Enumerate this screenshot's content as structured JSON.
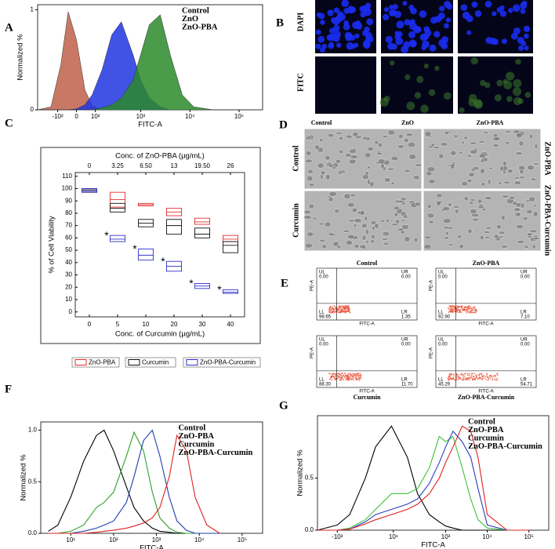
{
  "panel_letters": [
    "A",
    "B",
    "C",
    "D",
    "E",
    "F",
    "G"
  ],
  "chart_data": [
    {
      "type": "area",
      "xlabel": "FITC-A",
      "ylabel": "Normalized %",
      "x_scale": "biexponential",
      "x": [
        -300,
        -150,
        -80,
        -40,
        0,
        40,
        80,
        150,
        250,
        400,
        700,
        1000,
        1500,
        2500,
        4000,
        7000,
        12000,
        30000
      ],
      "series": [
        {
          "name": "Control",
          "color": "#c0604a",
          "values": [
            0,
            0.03,
            0.45,
            0.98,
            0.7,
            0.2,
            0.04,
            0,
            0,
            0,
            0,
            0,
            0,
            0,
            0,
            0,
            0,
            0
          ]
        },
        {
          "name": "ZnO",
          "color": "#1f35e0",
          "values": [
            0,
            0,
            0,
            0,
            0.01,
            0.05,
            0.15,
            0.4,
            0.75,
            0.88,
            0.55,
            0.3,
            0.12,
            0.03,
            0,
            0,
            0,
            0
          ]
        },
        {
          "name": "ZnO-PBA",
          "color": "#2a8a2a",
          "values": [
            0,
            0,
            0,
            0,
            0,
            0,
            0,
            0.02,
            0.05,
            0.12,
            0.3,
            0.55,
            0.85,
            0.95,
            0.55,
            0.15,
            0.03,
            0
          ]
        }
      ],
      "xlim": [
        -300,
        300000
      ],
      "xticks": [
        {
          "value": -100,
          "label": "-10²"
        },
        0,
        {
          "value": 100,
          "label": "10²"
        },
        {
          "value": 1000,
          "label": "10³"
        },
        {
          "value": 10000,
          "label": "10⁴"
        },
        {
          "value": 100000,
          "label": "10⁵"
        }
      ],
      "ylim": [
        0,
        1.05
      ],
      "yticks": [
        0,
        1
      ],
      "legend": "upper right"
    },
    {
      "type": "box",
      "xlabel": "Conc. of Curcumin (μg/mL)",
      "top_xlabel": "Conc. of ZnO-PBA (μg/mL)",
      "ylabel": "% of Cell Viability",
      "categories": [
        "0",
        "5",
        "10",
        "20",
        "30",
        "40"
      ],
      "top_categories": [
        "0",
        "3.25",
        "6.50",
        "13",
        "19.50",
        "26"
      ],
      "significance": [
        null,
        "*",
        "*",
        "*",
        "*",
        "*"
      ],
      "series": [
        {
          "name": "ZnO-PBA",
          "color": "#e03030",
          "low": [
            97,
            85,
            86,
            78,
            71,
            57
          ],
          "high": [
            100,
            97,
            88,
            84,
            76,
            62
          ],
          "mid": [
            99,
            91,
            87,
            81,
            73,
            59
          ]
        },
        {
          "name": "Curcumin",
          "color": "#111111",
          "low": [
            97,
            81,
            69,
            63,
            60,
            48
          ],
          "high": [
            100,
            88,
            75,
            75,
            68,
            57
          ],
          "mid": [
            99,
            84,
            72,
            70,
            63,
            54
          ]
        },
        {
          "name": "ZnO-PBA-Curcumin",
          "color": "#3030c8",
          "low": [
            97,
            57,
            42,
            33,
            19,
            15
          ],
          "high": [
            100,
            62,
            51,
            41,
            23,
            18
          ],
          "mid": [
            98,
            59,
            46,
            37,
            21,
            16
          ]
        }
      ],
      "ylim": [
        -4,
        113
      ],
      "yticks": [
        0,
        10,
        20,
        30,
        40,
        50,
        60,
        70,
        80,
        90,
        100,
        110
      ]
    },
    {
      "type": "line",
      "xlabel": "FITC-A",
      "ylabel": "Normalized %",
      "x_scale": "log",
      "x": [
        3,
        5,
        10,
        20,
        40,
        60,
        100,
        200,
        300,
        500,
        800,
        1200,
        2000,
        3000,
        5000,
        8000,
        15000,
        30000
      ],
      "series": [
        {
          "name": "Control",
          "color": "#000000",
          "values": [
            0.02,
            0.08,
            0.35,
            0.7,
            0.95,
            1.0,
            0.8,
            0.45,
            0.25,
            0.12,
            0.05,
            0.02,
            0.01,
            0,
            0,
            0,
            0,
            0
          ]
        },
        {
          "name": "ZnO-PBA",
          "color": "#2ca02c",
          "values": [
            0,
            0,
            0.02,
            0.08,
            0.25,
            0.3,
            0.4,
            0.75,
            0.98,
            0.8,
            0.4,
            0.15,
            0.05,
            0.01,
            0,
            0,
            0,
            0
          ]
        },
        {
          "name": "Curcumin",
          "color": "#1f3cb0",
          "values": [
            0,
            0,
            0,
            0.02,
            0.05,
            0.08,
            0.12,
            0.3,
            0.55,
            0.9,
            1.0,
            0.75,
            0.35,
            0.12,
            0.03,
            0,
            0,
            0
          ]
        },
        {
          "name": "ZnO-PBA-Curcumin",
          "color": "#e02020",
          "values": [
            0,
            0,
            0,
            0,
            0.01,
            0.02,
            0.03,
            0.05,
            0.07,
            0.1,
            0.15,
            0.25,
            0.55,
            0.95,
            0.8,
            0.35,
            0.08,
            0
          ]
        }
      ],
      "xlim": [
        2,
        300000
      ],
      "xticks": [
        {
          "value": 10,
          "label": "10¹"
        },
        {
          "value": 100,
          "label": "10²"
        },
        {
          "value": 1000,
          "label": "10³"
        },
        {
          "value": 10000,
          "label": "10⁴"
        },
        {
          "value": 100000,
          "label": "10⁵"
        }
      ],
      "ylim": [
        0,
        1.08
      ],
      "yticks": [
        {
          "value": 0,
          "label": "0.0"
        },
        0.5,
        {
          "value": 1,
          "label": "1.0"
        }
      ],
      "legend": "upper center"
    },
    {
      "type": "line",
      "xlabel": "FITC-A",
      "ylabel": "Normalized %",
      "x_scale": "biexponential",
      "x": [
        -3000,
        -1000,
        -500,
        -200,
        -100,
        0,
        100,
        200,
        400,
        700,
        1000,
        1500,
        2500,
        4000,
        6000,
        10000,
        30000,
        100000
      ],
      "series": [
        {
          "name": "Control",
          "color": "#000000",
          "values": [
            0,
            0.05,
            0.15,
            0.5,
            0.8,
            1.0,
            0.7,
            0.35,
            0.15,
            0.08,
            0.04,
            0.02,
            0,
            0,
            0,
            0,
            0,
            0
          ]
        },
        {
          "name": "ZnO-PBA",
          "color": "#3cc03c",
          "values": [
            0,
            0,
            0.02,
            0.1,
            0.2,
            0.35,
            0.35,
            0.4,
            0.6,
            0.9,
            0.85,
            0.9,
            0.6,
            0.3,
            0.1,
            0.02,
            0,
            0
          ]
        },
        {
          "name": "Curcumin",
          "color": "#2a3cc0",
          "values": [
            0,
            0,
            0.01,
            0.08,
            0.15,
            0.2,
            0.25,
            0.3,
            0.45,
            0.65,
            0.8,
            0.95,
            0.85,
            0.7,
            0.4,
            0.05,
            0,
            0
          ]
        },
        {
          "name": "ZnO-PBA-Curcumin",
          "color": "#e02020",
          "values": [
            0,
            0,
            0.01,
            0.06,
            0.1,
            0.15,
            0.2,
            0.25,
            0.35,
            0.5,
            0.65,
            0.8,
            1.0,
            0.95,
            0.7,
            0.15,
            0,
            0
          ]
        }
      ],
      "xlim": [
        -3000,
        300000
      ],
      "xticks": [
        {
          "value": -1000,
          "label": "-10³"
        },
        {
          "value": 10,
          "label": "10¹"
        },
        {
          "value": 1000,
          "label": "10³"
        },
        {
          "value": 10000,
          "label": "10⁴"
        },
        {
          "value": 100000,
          "label": "10⁵"
        }
      ],
      "ylim": [
        0,
        1.1
      ],
      "yticks": [
        {
          "value": 0,
          "label": "0.0"
        },
        0.5
      ],
      "legend": "upper right"
    }
  ],
  "panel_b": {
    "row_labels": [
      "DAPI",
      "FITC"
    ]
  },
  "panel_d": {
    "column_labels": [
      "Control",
      "ZnO",
      "ZnO-PBA"
    ],
    "row_labels_left": [
      "Control",
      "Curcumin"
    ],
    "row_labels_right": [
      "ZnO-PBA",
      "ZnO-PBA-Curcumin"
    ]
  },
  "panel_e": {
    "xlabel": "FITC-A",
    "ylabel": "PE-A",
    "quadrant_labels": [
      "UL",
      "UR",
      "LL",
      "LR"
    ],
    "plots": [
      {
        "title": "Control",
        "quadrants": [
          "0.00",
          "0.00",
          "98.65",
          "1.35"
        ]
      },
      {
        "title": "ZnO-PBA",
        "quadrants": [
          "0.00",
          "0.00",
          "92.90",
          "7.10"
        ]
      },
      {
        "title": "Curcumin",
        "quadrants": [
          "0.00",
          "0.00",
          "88.30",
          "11.70"
        ]
      },
      {
        "title": "ZnO-PBA-Curcumin",
        "quadrants": [
          "0.00",
          "0.00",
          "45.29",
          "54.71"
        ]
      }
    ]
  }
}
